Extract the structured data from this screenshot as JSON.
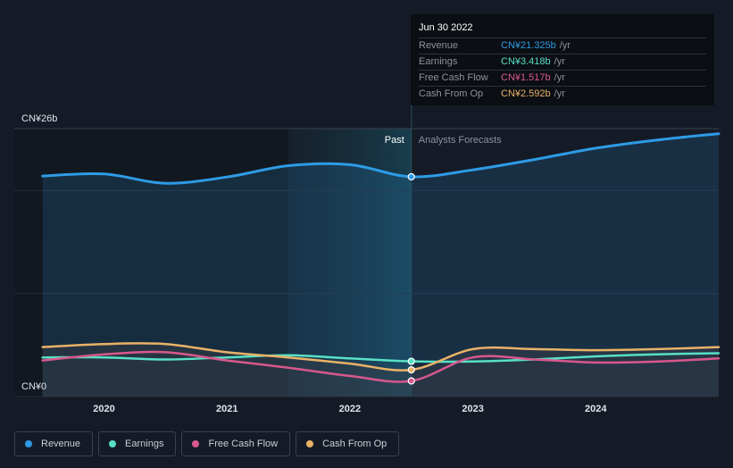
{
  "chart_data": {
    "type": "line",
    "x": [
      2019.5,
      2020.0,
      2020.5,
      2021.0,
      2021.5,
      2022.0,
      2022.5,
      2023.0,
      2023.5,
      2024.0,
      2024.5,
      2025.0
    ],
    "series": [
      {
        "name": "Revenue",
        "color": "#2e9be6",
        "values": [
          21.4,
          21.6,
          20.7,
          21.3,
          22.4,
          22.5,
          21.325,
          22.0,
          23.0,
          24.1,
          24.9,
          25.5
        ]
      },
      {
        "name": "Earnings",
        "color": "#58e0c6",
        "values": [
          3.8,
          3.8,
          3.6,
          3.8,
          4.0,
          3.7,
          3.418,
          3.4,
          3.6,
          3.9,
          4.1,
          4.2
        ]
      },
      {
        "name": "Free Cash Flow",
        "color": "#d8588c",
        "values": [
          3.5,
          4.1,
          4.3,
          3.5,
          2.8,
          2.0,
          1.517,
          3.8,
          3.6,
          3.3,
          3.4,
          3.7
        ]
      },
      {
        "name": "Cash From Op",
        "color": "#e9b267",
        "values": [
          4.8,
          5.1,
          5.1,
          4.3,
          3.8,
          3.2,
          2.592,
          4.6,
          4.6,
          4.5,
          4.6,
          4.8
        ]
      }
    ],
    "xlim": [
      2019.27,
      2025.0
    ],
    "ylim": [
      0,
      26
    ],
    "xticks": [
      "2020",
      "2021",
      "2022",
      "2023",
      "2024"
    ],
    "ytick_labels": {
      "top": "CN¥26b",
      "bottom": "CN¥0"
    },
    "divider_x": 2022.5,
    "past_label": "Past",
    "forecast_label": "Analysts Forecasts",
    "grid": true,
    "legend_position": "bottom-left"
  },
  "tooltip": {
    "date": "Jun 30 2022",
    "rows": [
      {
        "label": "Revenue",
        "value": "CN¥21.325b",
        "unit": "/yr",
        "color": "#2e9be6"
      },
      {
        "label": "Earnings",
        "value": "CN¥3.418b",
        "unit": "/yr",
        "color": "#58e0c6"
      },
      {
        "label": "Free Cash Flow",
        "value": "CN¥1.517b",
        "unit": "/yr",
        "color": "#d8588c"
      },
      {
        "label": "Cash From Op",
        "value": "CN¥2.592b",
        "unit": "/yr",
        "color": "#e9b267"
      }
    ]
  },
  "legend": [
    {
      "label": "Revenue",
      "color": "#2e9be6"
    },
    {
      "label": "Earnings",
      "color": "#58e0c6"
    },
    {
      "label": "Free Cash Flow",
      "color": "#d8588c"
    },
    {
      "label": "Cash From Op",
      "color": "#e9b267"
    }
  ]
}
